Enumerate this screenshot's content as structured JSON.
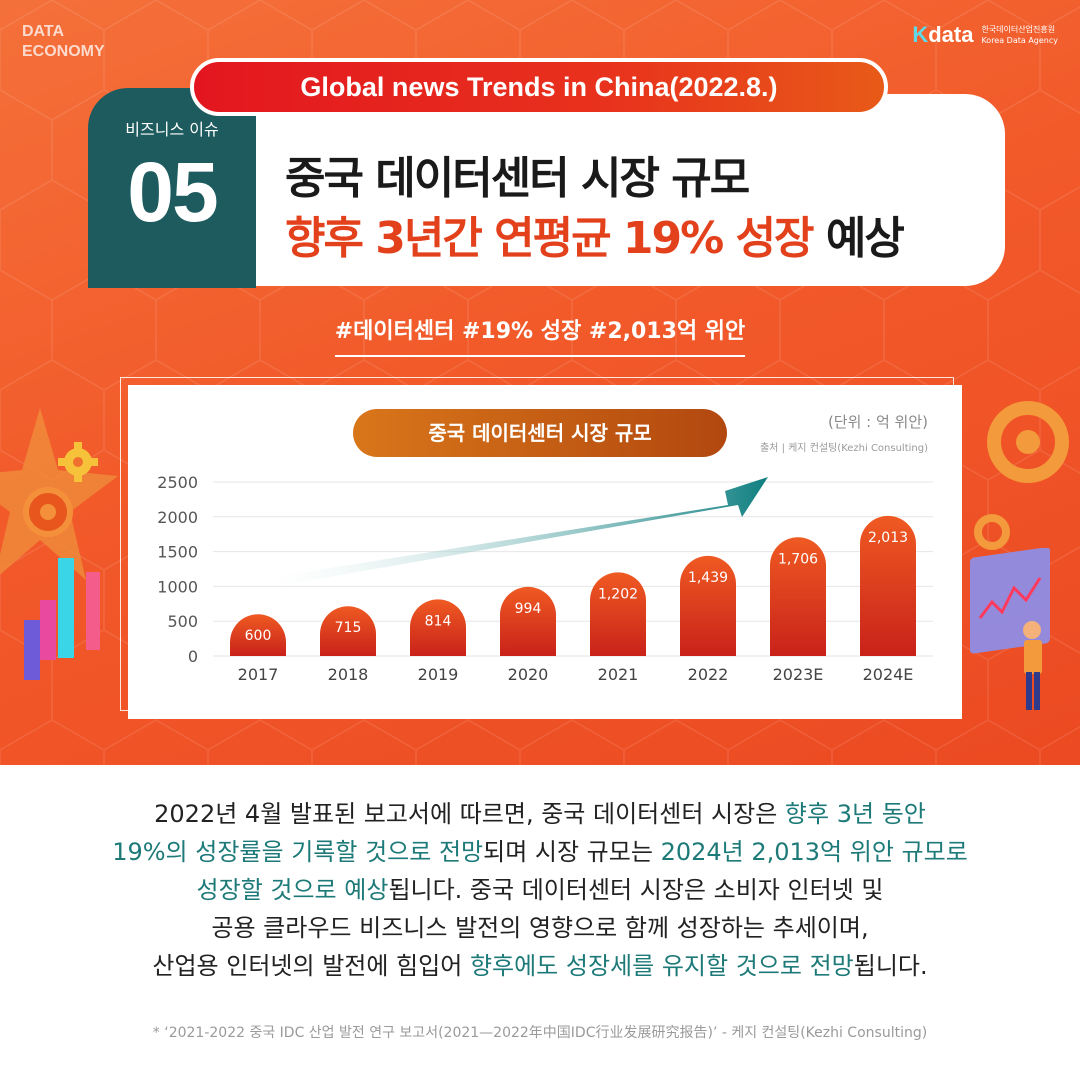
{
  "brand": {
    "left_line1": "DATA",
    "left_line2": "ECONOMY",
    "right_k": "K",
    "right_logo": "data",
    "right_sub_ko": "한국데이터산업진흥원",
    "right_sub_en": "Korea Data Agency"
  },
  "trend_pill": "Global news Trends in China(2022.8.)",
  "issue": {
    "label": "비즈니스 이슈",
    "number": "05"
  },
  "title": {
    "line1": "중국 데이터센터 시장 규모",
    "line2_accent": "향후 3년간 연평균 19% 성장",
    "line2_dark": "예상"
  },
  "hashtags": "#데이터센터 #19% 성장 #2,013억 위안",
  "colors": {
    "accent_orange": "#e3411c",
    "teal": "#1d5b5e",
    "bar_top": "#ef5a22",
    "bar_bottom": "#c9221a"
  },
  "chart_data": {
    "type": "bar",
    "title": "중국 데이터센터 시장 규모",
    "unit_note": "(단위 : 억 위안)",
    "source": "출처 | 케지 컨설팅(Kezhi Consulting)",
    "categories": [
      "2017",
      "2018",
      "2019",
      "2020",
      "2021",
      "2022",
      "2023E",
      "2024E"
    ],
    "values": [
      600,
      715,
      814,
      994,
      1202,
      1439,
      1706,
      2013
    ],
    "value_labels": [
      "600",
      "715",
      "814",
      "994",
      "1,202",
      "1,439",
      "1,706",
      "2,013"
    ],
    "ylim": [
      0,
      2500
    ],
    "yticks": [
      "0",
      "500",
      "1000",
      "1500",
      "2000",
      "2500"
    ],
    "ytick_values": [
      0,
      500,
      1000,
      1500,
      2000,
      2500
    ],
    "grid": true,
    "trend_arrow": true
  },
  "body": {
    "line1_a": "2022년 4월 발표된 보고서에 따르면, 중국 데이터센터 시장은 ",
    "line1_hl": "향후 3년 동안",
    "line2_hl": "19%의 성장률을 기록할 것으로 전망",
    "line2_b": "되며 시장 규모는 ",
    "line2_hl2": "2024년 2,013억 위안 규모로",
    "line3_hl": "성장할 것으로 예상",
    "line3_b": "됩니다. 중국 데이터센터 시장은 소비자 인터넷 및",
    "line4": "공용 클라우드 비즈니스 발전의 영향으로 함께 성장하는 추세이며,",
    "line5_a": "산업용 인터넷의 발전에 힘입어 ",
    "line5_hl": "향후에도 성장세를 유지할 것으로 전망",
    "line5_b": "됩니다."
  },
  "footnote": "* ‘2021-2022 중국 IDC 산업 발전 연구 보고서(2021—2022年中国IDC行业发展研究报告)’ - 케지 컨설팅(Kezhi Consulting)"
}
